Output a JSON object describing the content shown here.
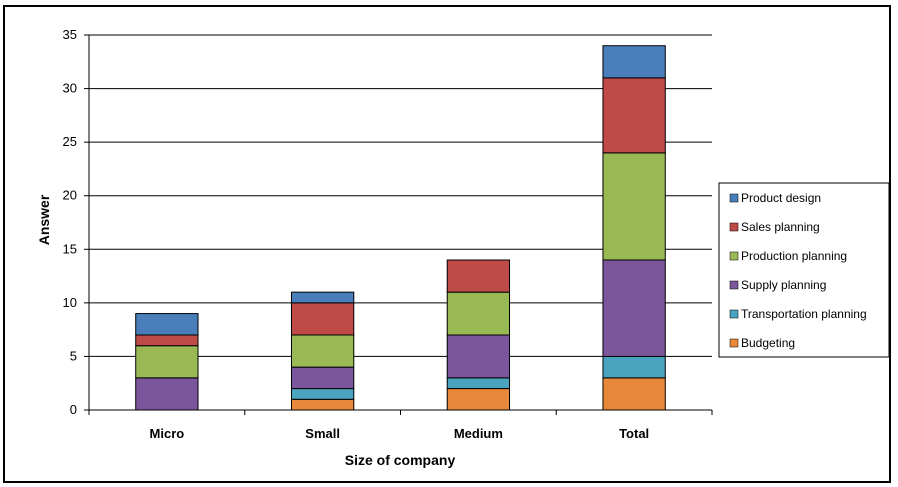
{
  "chart_data": {
    "type": "bar",
    "stacked": true,
    "title": "",
    "xlabel": "Size of company",
    "ylabel": "Answer",
    "ylim": [
      0,
      35
    ],
    "yticks": [
      0,
      5,
      10,
      15,
      20,
      25,
      30,
      35
    ],
    "categories": [
      "Micro",
      "Small",
      "Medium",
      "Total"
    ],
    "grid": true,
    "legend_position": "right",
    "series": [
      {
        "name": "Budgeting",
        "color": "#E8883A",
        "values": [
          0,
          1,
          2,
          3
        ]
      },
      {
        "name": "Transportation planning",
        "color": "#4AA3BF",
        "values": [
          0,
          1,
          1,
          2
        ]
      },
      {
        "name": "Supply planning",
        "color": "#7B569C",
        "values": [
          3,
          2,
          4,
          9
        ]
      },
      {
        "name": "Production planning",
        "color": "#98B954",
        "values": [
          3,
          3,
          4,
          10
        ]
      },
      {
        "name": "Sales planning",
        "color": "#BE4B48",
        "values": [
          1,
          3,
          3,
          7
        ]
      },
      {
        "name": "Product design",
        "color": "#4A7EBB",
        "values": [
          2,
          1,
          0,
          3
        ]
      }
    ],
    "legend_order": [
      "Product design",
      "Sales planning",
      "Production planning",
      "Supply planning",
      "Transportation planning",
      "Budgeting"
    ]
  }
}
